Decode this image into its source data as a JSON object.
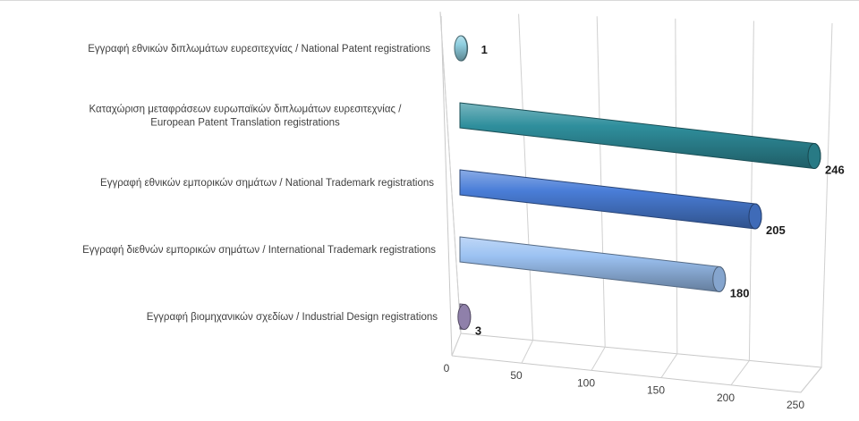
{
  "chart_data": {
    "type": "bar",
    "orientation": "horizontal",
    "style": "3d-cylinder",
    "title": "",
    "xlabel": "",
    "ylabel": "",
    "xlim": [
      0,
      250
    ],
    "ticks": [
      0,
      50,
      100,
      150,
      200,
      250
    ],
    "grid": true,
    "legend": "none",
    "categories": [
      [
        "Εγγραφή  εθνικών διπλωμάτων ευρεσιτεχνίας / National Patent registrations"
      ],
      [
        "Καταχώριση μεταφράσεων ευρωπαϊκών διπλωμάτων ευρεσιτεχνίας /",
        "European Patent Translation registrations"
      ],
      [
        "Εγγραφή  εθνικών εμπορικών σημάτων / National Trademark registrations"
      ],
      [
        "Εγγραφή  διεθνών εμπορικών σημάτων / International Trademark registrations"
      ],
      [
        "Εγγραφή  βιομηχανικών σχεδίων / Industrial Design registrations"
      ]
    ],
    "values": [
      1,
      246,
      205,
      180,
      3
    ],
    "data_labels": [
      "1",
      "246",
      "205",
      "180",
      "3"
    ],
    "colors": [
      "#8fcfe0",
      "#2f8f9d",
      "#4a7ed8",
      "#9cc2f2",
      "#a896c8"
    ]
  }
}
